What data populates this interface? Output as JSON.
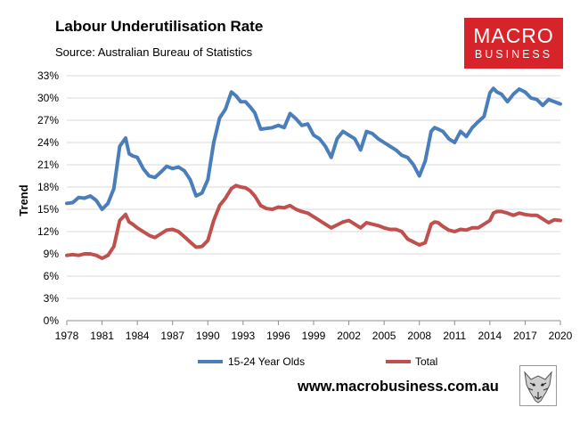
{
  "header": {
    "title": "Labour Underutilisation Rate",
    "subtitle": "Source: Australian Bureau of Statistics"
  },
  "brand": {
    "logo_top": "MACRO",
    "logo_bottom": "BUSINESS",
    "logo_color": "#d7242a",
    "website": "www.macrobusiness.com.au",
    "mascot": "wolf-icon"
  },
  "chart_data": {
    "type": "line",
    "title": "Labour Underutilisation Rate",
    "xlabel": "",
    "ylabel": "Trend",
    "xlim": [
      1978,
      2020
    ],
    "ylim": [
      0,
      33
    ],
    "grid": true,
    "legend": "bottom",
    "x_ticks": [
      "1978",
      "1981",
      "1984",
      "1987",
      "1990",
      "1993",
      "1996",
      "1999",
      "2002",
      "2005",
      "2008",
      "2011",
      "2014",
      "2017",
      "2020"
    ],
    "y_ticks": [
      "0%",
      "3%",
      "6%",
      "9%",
      "12%",
      "15%",
      "18%",
      "21%",
      "24%",
      "27%",
      "30%",
      "33%"
    ],
    "series": [
      {
        "name": "15-24 Year Olds",
        "color": "#4a7ebb",
        "x": [
          1978,
          1978.5,
          1979,
          1979.5,
          1980,
          1980.5,
          1981,
          1981.5,
          1982,
          1982.5,
          1983,
          1983.3,
          1983.6,
          1984,
          1984.5,
          1985,
          1985.5,
          1986,
          1986.5,
          1987,
          1987.5,
          1988,
          1988.5,
          1989,
          1989.5,
          1990,
          1990.5,
          1991,
          1991.5,
          1992,
          1992.4,
          1992.8,
          1993.2,
          1993.6,
          1994,
          1994.5,
          1995,
          1995.5,
          1996,
          1996.5,
          1997,
          1997.5,
          1998,
          1998.5,
          1999,
          1999.5,
          2000,
          2000.5,
          2001,
          2001.5,
          2002,
          2002.5,
          2003,
          2003.5,
          2004,
          2004.5,
          2005,
          2005.5,
          2006,
          2006.5,
          2007,
          2007.5,
          2008,
          2008.5,
          2009,
          2009.3,
          2009.6,
          2010,
          2010.5,
          2011,
          2011.5,
          2012,
          2012.5,
          2013,
          2013.5,
          2014,
          2014.3,
          2014.6,
          2015,
          2015.5,
          2016,
          2016.5,
          2017,
          2017.5,
          2018,
          2018.5,
          2019,
          2019.5,
          2020
        ],
        "y": [
          15.8,
          15.9,
          16.6,
          16.5,
          16.8,
          16.2,
          15.0,
          15.8,
          17.8,
          23.5,
          24.6,
          22.5,
          22.2,
          22.0,
          20.5,
          19.5,
          19.3,
          20.0,
          20.8,
          20.5,
          20.7,
          20.2,
          19.0,
          16.8,
          17.2,
          19.0,
          24.0,
          27.3,
          28.5,
          30.8,
          30.3,
          29.5,
          29.5,
          28.8,
          28.0,
          25.8,
          25.9,
          26.0,
          26.3,
          26.0,
          27.9,
          27.2,
          26.3,
          26.5,
          25.0,
          24.5,
          23.5,
          22.0,
          24.5,
          25.5,
          25.0,
          24.5,
          23.0,
          25.5,
          25.2,
          24.5,
          24.0,
          23.5,
          23.0,
          22.3,
          22.0,
          21.0,
          19.5,
          21.5,
          25.5,
          26.0,
          25.8,
          25.5,
          24.5,
          24.0,
          25.5,
          24.8,
          26.0,
          26.8,
          27.5,
          30.7,
          31.3,
          30.8,
          30.5,
          29.5,
          30.5,
          31.2,
          30.8,
          30.0,
          29.8,
          29.0,
          29.8,
          29.5,
          29.2
        ]
      },
      {
        "name": "Total",
        "color": "#c0504d",
        "x": [
          1978,
          1978.5,
          1979,
          1979.5,
          1980,
          1980.5,
          1981,
          1981.5,
          1982,
          1982.5,
          1983,
          1983.3,
          1983.6,
          1984,
          1984.5,
          1985,
          1985.5,
          1986,
          1986.5,
          1987,
          1987.5,
          1988,
          1988.5,
          1989,
          1989.5,
          1990,
          1990.5,
          1991,
          1991.5,
          1992,
          1992.4,
          1992.8,
          1993.2,
          1993.6,
          1994,
          1994.5,
          1995,
          1995.5,
          1996,
          1996.5,
          1997,
          1997.5,
          1998,
          1998.5,
          1999,
          1999.5,
          2000,
          2000.5,
          2001,
          2001.5,
          2002,
          2002.5,
          2003,
          2003.5,
          2004,
          2004.5,
          2005,
          2005.5,
          2006,
          2006.5,
          2007,
          2007.5,
          2008,
          2008.5,
          2009,
          2009.3,
          2009.6,
          2010,
          2010.5,
          2011,
          2011.5,
          2012,
          2012.5,
          2013,
          2013.5,
          2014,
          2014.3,
          2014.6,
          2015,
          2015.5,
          2016,
          2016.5,
          2017,
          2017.5,
          2018,
          2018.5,
          2019,
          2019.5,
          2020
        ],
        "y": [
          8.8,
          8.9,
          8.8,
          9.0,
          9.0,
          8.8,
          8.4,
          8.8,
          10.0,
          13.5,
          14.3,
          13.3,
          13.0,
          12.5,
          12.0,
          11.5,
          11.2,
          11.7,
          12.2,
          12.3,
          12.0,
          11.3,
          10.6,
          9.9,
          10.0,
          10.8,
          13.5,
          15.5,
          16.5,
          17.8,
          18.2,
          18.0,
          17.9,
          17.5,
          16.8,
          15.5,
          15.1,
          15.0,
          15.3,
          15.2,
          15.5,
          15.0,
          14.7,
          14.5,
          14.0,
          13.5,
          13.0,
          12.5,
          12.9,
          13.3,
          13.5,
          13.0,
          12.5,
          13.2,
          13.0,
          12.8,
          12.5,
          12.3,
          12.3,
          12.0,
          11.0,
          10.6,
          10.2,
          10.5,
          13.0,
          13.3,
          13.2,
          12.7,
          12.2,
          12.0,
          12.3,
          12.2,
          12.5,
          12.5,
          13.0,
          13.5,
          14.5,
          14.7,
          14.7,
          14.5,
          14.2,
          14.5,
          14.3,
          14.2,
          14.2,
          13.7,
          13.2,
          13.6,
          13.5
        ]
      }
    ]
  }
}
